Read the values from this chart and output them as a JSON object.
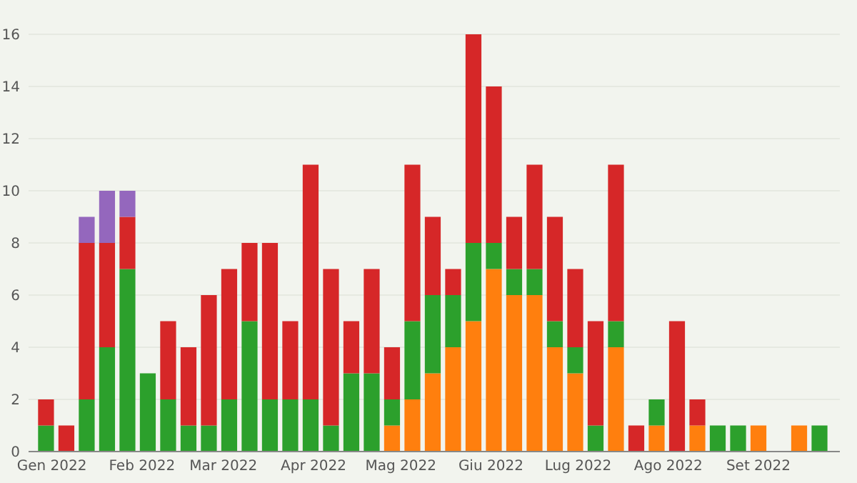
{
  "chart_data": {
    "type": "bar",
    "stacked": true,
    "grid": "y",
    "x": [
      "2021-12-30",
      "2022-01-06",
      "2022-01-13",
      "2022-01-20",
      "2022-01-27",
      "2022-02-03",
      "2022-02-10",
      "2022-02-17",
      "2022-02-24",
      "2022-03-03",
      "2022-03-10",
      "2022-03-17",
      "2022-03-24",
      "2022-03-31",
      "2022-04-07",
      "2022-04-14",
      "2022-04-21",
      "2022-04-28",
      "2022-05-05",
      "2022-05-12",
      "2022-05-19",
      "2022-05-26",
      "2022-06-02",
      "2022-06-09",
      "2022-06-16",
      "2022-06-23",
      "2022-06-30",
      "2022-07-07",
      "2022-07-14",
      "2022-07-21",
      "2022-07-28",
      "2022-08-04",
      "2022-08-11",
      "2022-08-18",
      "2022-08-25",
      "2022-09-01",
      "2022-09-08",
      "2022-09-15",
      "2022-09-22"
    ],
    "xlim": [
      "2021-12-24",
      "2022-09-29"
    ],
    "xticks": [
      {
        "value": "2022-01-01",
        "label": "Gen 2022"
      },
      {
        "value": "2022-02-01",
        "label": "Feb 2022"
      },
      {
        "value": "2022-03-01",
        "label": "Mar 2022"
      },
      {
        "value": "2022-04-01",
        "label": "Apr 2022"
      },
      {
        "value": "2022-05-01",
        "label": "Mag 2022"
      },
      {
        "value": "2022-06-01",
        "label": "Giu 2022"
      },
      {
        "value": "2022-07-01",
        "label": "Lug 2022"
      },
      {
        "value": "2022-08-01",
        "label": "Ago 2022"
      },
      {
        "value": "2022-09-01",
        "label": "Set 2022"
      }
    ],
    "ylim": [
      0,
      16
    ],
    "yticks": [
      0,
      2,
      4,
      6,
      8,
      10,
      12,
      14,
      16
    ],
    "series": [
      {
        "color": "#ff7f0e",
        "values": [
          0,
          0,
          0,
          0,
          0,
          0,
          0,
          0,
          0,
          0,
          0,
          0,
          0,
          0,
          0,
          0,
          0,
          1,
          2,
          3,
          4,
          5,
          7,
          6,
          6,
          4,
          3,
          0,
          4,
          0,
          1,
          0,
          1,
          0,
          0,
          1,
          0,
          1,
          0
        ]
      },
      {
        "color": "#2ca02c",
        "values": [
          1,
          0,
          2,
          4,
          7,
          3,
          2,
          1,
          1,
          2,
          5,
          2,
          2,
          2,
          1,
          3,
          3,
          1,
          3,
          3,
          2,
          3,
          1,
          1,
          1,
          1,
          1,
          1,
          1,
          0,
          1,
          0,
          0,
          1,
          1,
          0,
          0,
          0,
          1
        ]
      },
      {
        "color": "#d62728",
        "values": [
          1,
          1,
          6,
          4,
          2,
          0,
          3,
          3,
          5,
          5,
          3,
          6,
          3,
          9,
          6,
          2,
          4,
          2,
          6,
          3,
          1,
          8,
          6,
          2,
          4,
          4,
          3,
          4,
          6,
          1,
          0,
          5,
          1,
          0,
          0,
          0,
          0,
          0,
          0
        ]
      },
      {
        "color": "#9467bd",
        "values": [
          0,
          0,
          1,
          2,
          1,
          0,
          0,
          0,
          0,
          0,
          0,
          0,
          0,
          0,
          0,
          0,
          0,
          0,
          0,
          0,
          0,
          0,
          0,
          0,
          0,
          0,
          0,
          0,
          0,
          0,
          0,
          0,
          0,
          0,
          0,
          0,
          0,
          0,
          0
        ]
      }
    ]
  }
}
